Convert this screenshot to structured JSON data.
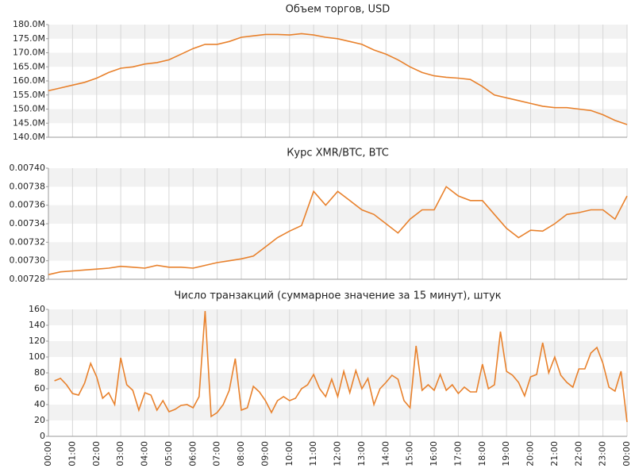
{
  "chart_data": [
    {
      "type": "line",
      "title": "Объем торгов, USD",
      "color": "#e8812c",
      "grid": true,
      "x": [
        0,
        0.5,
        1,
        1.5,
        2,
        2.5,
        3,
        3.5,
        4,
        4.5,
        5,
        5.5,
        6,
        6.5,
        7,
        7.5,
        8,
        8.5,
        9,
        9.5,
        10,
        10.5,
        11,
        11.5,
        12,
        12.5,
        13,
        13.5,
        14,
        14.5,
        15,
        15.5,
        16,
        16.5,
        17,
        17.5,
        18,
        18.5,
        19,
        19.5,
        20,
        20.5,
        21,
        21.5,
        22,
        22.5,
        23,
        23.5,
        24
      ],
      "values": [
        156.5,
        157.5,
        158.5,
        159.5,
        161,
        163,
        164.5,
        165,
        166,
        166.5,
        167.5,
        169.5,
        171.5,
        173,
        173,
        174,
        175.5,
        176,
        176.5,
        176.5,
        176.3,
        176.8,
        176.3,
        175.5,
        175,
        174,
        173,
        171,
        169.5,
        167.5,
        165,
        163,
        161.8,
        161.3,
        161,
        160.5,
        158,
        155,
        154,
        153,
        152,
        151,
        150.5,
        150.5,
        150,
        149.5,
        148,
        146,
        144.5
      ],
      "xlim": [
        0,
        24
      ],
      "xticks": [
        0,
        1,
        2,
        3,
        4,
        5,
        6,
        7,
        8,
        9,
        10,
        11,
        12,
        13,
        14,
        15,
        16,
        17,
        18,
        19,
        20,
        21,
        22,
        23,
        24
      ],
      "ylim": [
        140,
        180
      ],
      "yticks": [
        {
          "value": 140,
          "label": "140.0M"
        },
        {
          "value": 145,
          "label": "145.0M"
        },
        {
          "value": 150,
          "label": "150.0M"
        },
        {
          "value": 155,
          "label": "155.0M"
        },
        {
          "value": 160,
          "label": "160.0M"
        },
        {
          "value": 165,
          "label": "165.0M"
        },
        {
          "value": 170,
          "label": "170.0M"
        },
        {
          "value": 175,
          "label": "175.0M"
        },
        {
          "value": 180,
          "label": "180.0M"
        }
      ]
    },
    {
      "type": "line",
      "title": "Курс XMR/BTC, BTC",
      "color": "#e8812c",
      "grid": true,
      "x": [
        0,
        0.5,
        1,
        1.5,
        2,
        2.5,
        3,
        3.5,
        4,
        4.5,
        5,
        5.5,
        6,
        6.5,
        7,
        7.5,
        8,
        8.5,
        9,
        9.5,
        10,
        10.5,
        11,
        11.5,
        12,
        12.5,
        13,
        13.5,
        14,
        14.5,
        15,
        15.5,
        16,
        16.5,
        17,
        17.5,
        18,
        18.5,
        19,
        19.5,
        20,
        20.5,
        21,
        21.5,
        22,
        22.5,
        23,
        23.5,
        24
      ],
      "values": [
        0.007285,
        0.007288,
        0.007289,
        0.00729,
        0.007291,
        0.007292,
        0.007294,
        0.007293,
        0.007292,
        0.007295,
        0.007293,
        0.007293,
        0.007292,
        0.007295,
        0.007298,
        0.0073,
        0.007302,
        0.007305,
        0.007315,
        0.007325,
        0.007332,
        0.007338,
        0.007375,
        0.00736,
        0.007375,
        0.007365,
        0.007355,
        0.00735,
        0.00734,
        0.00733,
        0.007345,
        0.007355,
        0.007355,
        0.00738,
        0.00737,
        0.007365,
        0.007365,
        0.00735,
        0.007335,
        0.007325,
        0.007333,
        0.007332,
        0.00734,
        0.00735,
        0.007352,
        0.007355,
        0.007355,
        0.007345,
        0.00737
      ],
      "xlim": [
        0,
        24
      ],
      "xticks": [
        0,
        1,
        2,
        3,
        4,
        5,
        6,
        7,
        8,
        9,
        10,
        11,
        12,
        13,
        14,
        15,
        16,
        17,
        18,
        19,
        20,
        21,
        22,
        23,
        24
      ],
      "ylim": [
        0.00728,
        0.0074
      ],
      "yticks": [
        {
          "value": 0.00728,
          "label": "0.00728"
        },
        {
          "value": 0.0073,
          "label": "0.00730"
        },
        {
          "value": 0.00732,
          "label": "0.00732"
        },
        {
          "value": 0.00734,
          "label": "0.00734"
        },
        {
          "value": 0.00736,
          "label": "0.00736"
        },
        {
          "value": 0.00738,
          "label": "0.00738"
        },
        {
          "value": 0.0074,
          "label": "0.00740"
        }
      ]
    },
    {
      "type": "line",
      "title": "Число транзакций (суммарное значение за 15 минут), штук",
      "color": "#e8812c",
      "grid": true,
      "x": [
        0.25,
        0.5,
        0.75,
        1,
        1.25,
        1.5,
        1.75,
        2,
        2.25,
        2.5,
        2.75,
        3,
        3.25,
        3.5,
        3.75,
        4,
        4.25,
        4.5,
        4.75,
        5,
        5.25,
        5.5,
        5.75,
        6,
        6.25,
        6.5,
        6.75,
        7,
        7.25,
        7.5,
        7.75,
        8,
        8.25,
        8.5,
        8.75,
        9,
        9.25,
        9.5,
        9.75,
        10,
        10.25,
        10.5,
        10.75,
        11,
        11.25,
        11.5,
        11.75,
        12,
        12.25,
        12.5,
        12.75,
        13,
        13.25,
        13.5,
        13.75,
        14,
        14.25,
        14.5,
        14.75,
        15,
        15.25,
        15.5,
        15.75,
        16,
        16.25,
        16.5,
        16.75,
        17,
        17.25,
        17.5,
        17.75,
        18,
        18.25,
        18.5,
        18.75,
        19,
        19.25,
        19.5,
        19.75,
        20,
        20.25,
        20.5,
        20.75,
        21,
        21.25,
        21.5,
        21.75,
        22,
        22.25,
        22.5,
        22.75,
        23,
        23.25,
        23.5,
        23.75,
        24
      ],
      "values": [
        70,
        73,
        65,
        54,
        52,
        67,
        92,
        75,
        48,
        55,
        40,
        99,
        65,
        58,
        33,
        55,
        52,
        33,
        45,
        31,
        34,
        39,
        40,
        36,
        50,
        158,
        25,
        30,
        40,
        58,
        98,
        33,
        36,
        63,
        56,
        45,
        30,
        45,
        50,
        45,
        48,
        60,
        65,
        78,
        60,
        50,
        72,
        50,
        82,
        55,
        83,
        60,
        73,
        40,
        60,
        68,
        77,
        72,
        45,
        36,
        114,
        58,
        65,
        58,
        78,
        58,
        65,
        54,
        62,
        56,
        56,
        91,
        60,
        65,
        132,
        82,
        77,
        68,
        51,
        75,
        78,
        118,
        80,
        100,
        77,
        68,
        62,
        85,
        85,
        105,
        112,
        92,
        62,
        57,
        82,
        18
      ],
      "xlim": [
        0,
        24
      ],
      "xticks": [
        {
          "value": 0,
          "label": "00:00"
        },
        {
          "value": 1,
          "label": "01:00"
        },
        {
          "value": 2,
          "label": "02:00"
        },
        {
          "value": 3,
          "label": "03:00"
        },
        {
          "value": 4,
          "label": "04:00"
        },
        {
          "value": 5,
          "label": "05:00"
        },
        {
          "value": 6,
          "label": "06:00"
        },
        {
          "value": 7,
          "label": "07:00"
        },
        {
          "value": 8,
          "label": "08:00"
        },
        {
          "value": 9,
          "label": "09:00"
        },
        {
          "value": 10,
          "label": "10:00"
        },
        {
          "value": 11,
          "label": "11:00"
        },
        {
          "value": 12,
          "label": "12:00"
        },
        {
          "value": 13,
          "label": "13:00"
        },
        {
          "value": 14,
          "label": "14:00"
        },
        {
          "value": 15,
          "label": "15:00"
        },
        {
          "value": 16,
          "label": "16:00"
        },
        {
          "value": 17,
          "label": "17:00"
        },
        {
          "value": 18,
          "label": "18:00"
        },
        {
          "value": 19,
          "label": "19:00"
        },
        {
          "value": 20,
          "label": "20:00"
        },
        {
          "value": 21,
          "label": "21:00"
        },
        {
          "value": 22,
          "label": "22:00"
        },
        {
          "value": 23,
          "label": "23:00"
        },
        {
          "value": 24,
          "label": "00:00"
        }
      ],
      "ylim": [
        0,
        160
      ],
      "yticks": [
        0,
        20,
        40,
        60,
        80,
        100,
        120,
        140,
        160
      ]
    }
  ]
}
